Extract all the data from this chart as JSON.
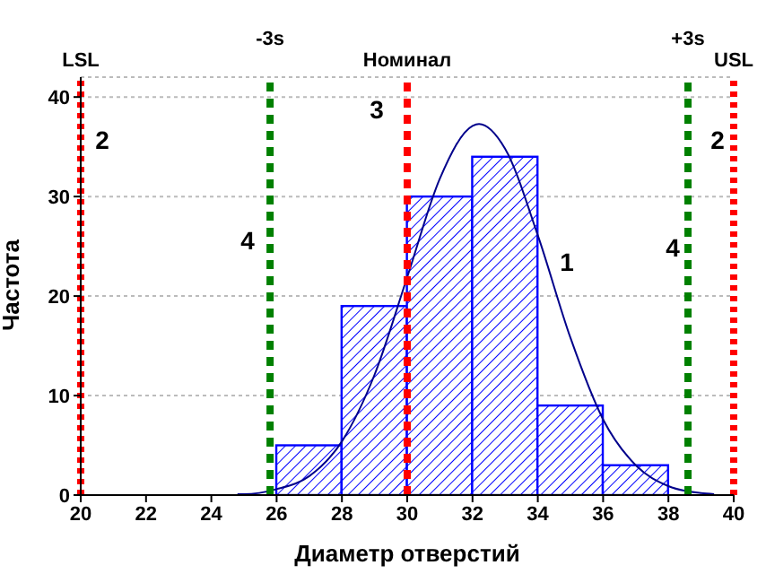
{
  "chart_data": {
    "type": "histogram",
    "xlabel": "Диаметр отверстий",
    "ylabel": "Частота",
    "bins": [
      26,
      28,
      30,
      32,
      34,
      36,
      38
    ],
    "values": [
      5,
      19,
      30,
      34,
      9,
      3
    ],
    "color": "#0000ff",
    "series": [
      {
        "type": "line",
        "color": "#00008b",
        "x": [
          24.8,
          25,
          26,
          27,
          28,
          29,
          30,
          31,
          32,
          32.2,
          33,
          34,
          35,
          36,
          37,
          38,
          39,
          39.4
        ],
        "values": [
          0.1,
          0.1,
          0.6,
          1.9,
          5.4,
          12.1,
          21.9,
          31.8,
          37.1,
          37.3,
          34.8,
          26.1,
          15.8,
          7.6,
          3.0,
          0.9,
          0.2,
          0.1
        ]
      }
    ],
    "xlim": [
      20,
      40
    ],
    "xticks": [
      20,
      22,
      24,
      26,
      28,
      30,
      32,
      34,
      36,
      38,
      40
    ],
    "ylim": [
      0,
      42
    ],
    "yticks": [
      0,
      10,
      20,
      30,
      40
    ],
    "grid": "y",
    "legend": false,
    "marker": "none",
    "ref_lines": [
      {
        "axis": "x",
        "value": 20,
        "label": "LSL",
        "color": "#ff0000",
        "line_style": "dotted"
      },
      {
        "axis": "x",
        "value": 25.8,
        "label": "-3s",
        "color": "#008000",
        "line_style": "dashed"
      },
      {
        "axis": "x",
        "value": 30,
        "label": "Номинал",
        "color": "#ff0000",
        "line_style": "dashed"
      },
      {
        "axis": "x",
        "value": 38.6,
        "label": "+3s",
        "color": "#008000",
        "line_style": "dashed"
      },
      {
        "axis": "x",
        "value": 40,
        "label": "USL",
        "color": "#ff0000",
        "line_style": "dotted"
      }
    ],
    "annotations": [
      "1",
      "2",
      "2",
      "3",
      "4",
      "4"
    ]
  }
}
